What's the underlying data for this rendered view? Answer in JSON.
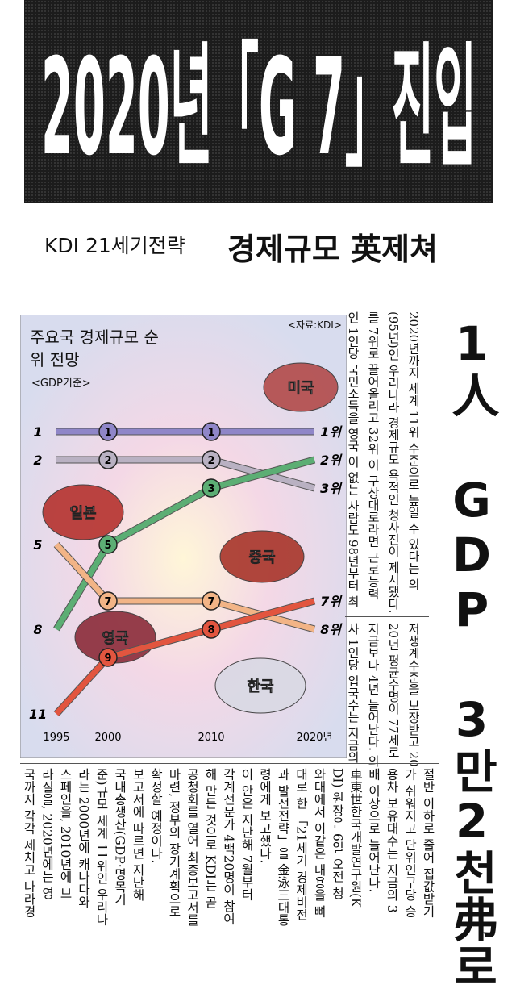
{
  "headline": "2020년「G 7」진입",
  "subheadline": {
    "kicker": "KDI 21세기전략",
    "title": "경제규모 英제쳐"
  },
  "side_headline": "1人 GDP 3만2천弗로",
  "chart_data": {
    "type": "line",
    "title": "주요국 경제규모 순위 전망",
    "subtitle": "<GDP기준>",
    "source": "<자료:KDI>",
    "x": [
      1995,
      2000,
      2010,
      2020
    ],
    "xlim": [
      1995,
      2020
    ],
    "xticks": [
      1995,
      2000,
      2010,
      {
        "value": 2020,
        "label": "2020년"
      }
    ],
    "ylim": [
      1,
      11
    ],
    "series": [
      {
        "name": "미국",
        "color": "#8f86c8",
        "values": [
          1,
          1,
          1,
          1
        ],
        "value_labels": [
          "1",
          "1",
          "1",
          "1위"
        ]
      },
      {
        "name": "일본",
        "color": "#b9b1c2",
        "values": [
          2,
          2,
          2,
          3
        ],
        "value_labels": [
          "2",
          "2",
          "2",
          "3위"
        ]
      },
      {
        "name": "중국",
        "color": "#5cae74",
        "values": [
          8,
          5,
          3,
          2
        ],
        "value_labels": [
          "8",
          "5",
          "3",
          "2위"
        ]
      },
      {
        "name": "영국",
        "color": "#f2b486",
        "values": [
          5,
          7,
          7,
          8
        ],
        "value_labels": [
          "5",
          "7",
          "7",
          "8위"
        ]
      },
      {
        "name": "한국",
        "color": "#e2553f",
        "values": [
          11,
          9,
          8,
          7
        ],
        "value_labels": [
          "11",
          "9",
          "8",
          "7위"
        ]
      }
    ]
  },
  "article": {
    "upper_columns": [
      "2020년까지 세계 11위 수준으로 높일 수 있다는 의",
      "(95년)인 우리나라 경제규모 욕적인 청사진이 제시됐다.",
      "를 7위로 끌어올리고 32위 이 구상대로라면 근로능력",
      "인 1인당 국민소득을 영국 이 없는 사람도 98년부터 최"
    ],
    "middle_columns": [
      "저생계수준을 보장받고 20",
      "20년 평균수명이 77세로",
      "지금보다 4년 늘어난다. 의",
      "사 1인당 입국수는 지금의"
    ],
    "lower_columns": [
      "절반 이하로 줄어 집값받기",
      "가 쉬워지고 단위인구당 승",
      "용차 보유대수는 지금의 3",
      "배 이상으로 늘어난다.",
      "車東世한국개발연구원(K",
      "DI) 원장은 6일 오전 청",
      "와대에서 이같은 내용을 뼈",
      "대로 한 「21세기 경제비전",
      "과 발전전략」을 金泳三대통",
      "령에게 보고했다.",
      "이 안은 지난해 7월부터",
      "각계전문가 4백20명이 참여",
      "해 만든 것으로 KDI는 곧",
      "공청회를 열어 최종보고서를",
      "마련, 정부의 장기계획으로",
      "확정할 예정이다.",
      "보고서에 따르면 지난해",
      "국내총생산(GDP·명목기",
      "준)규모 세계 11위인 우리나",
      "라는 2000년에 캐나다와",
      "스페인을, 2010년에 브",
      "라질을, 2020년에는 영",
      "국까지 각각 제치고 나라경"
    ]
  }
}
